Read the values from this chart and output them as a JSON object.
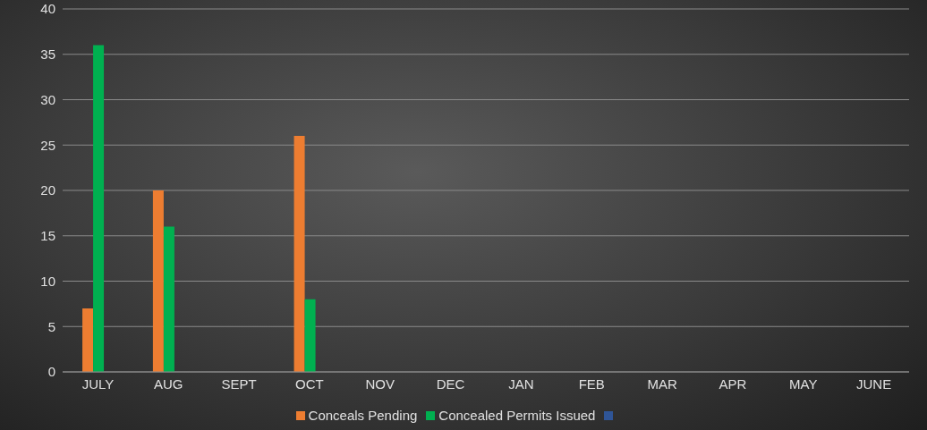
{
  "chart_data": {
    "type": "bar",
    "categories": [
      "JULY",
      "AUG",
      "SEPT",
      "OCT",
      "NOV",
      "DEC",
      "JAN",
      "FEB",
      "MAR",
      "APR",
      "MAY",
      "JUNE"
    ],
    "series": [
      {
        "name": "Conceals Pending",
        "color": "#ed7d31",
        "values": [
          7,
          20,
          null,
          26,
          null,
          null,
          null,
          null,
          null,
          null,
          null,
          null
        ]
      },
      {
        "name": "Concealed Permits Issued",
        "color": "#00b050",
        "values": [
          36,
          16,
          null,
          8,
          null,
          null,
          null,
          null,
          null,
          null,
          null,
          null
        ]
      },
      {
        "color": "#2f5597",
        "values": [
          null,
          null,
          null,
          null,
          null,
          null,
          null,
          null,
          null,
          null,
          null,
          null
        ]
      }
    ],
    "ylim": [
      0,
      40
    ],
    "yticks": [
      0,
      5,
      10,
      15,
      20,
      25,
      30,
      35,
      40
    ],
    "grid": "y",
    "legend": "bottom"
  }
}
